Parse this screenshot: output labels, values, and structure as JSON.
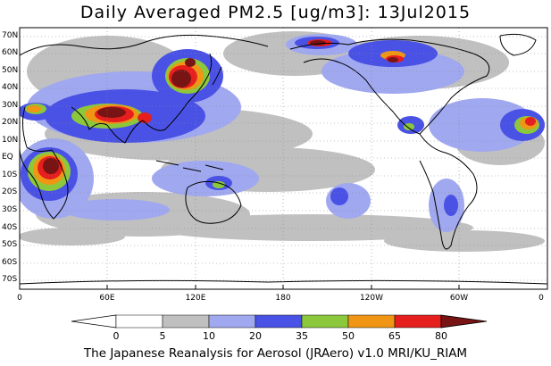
{
  "title": "Daily Averaged PM2.5 [ug/m3]: 13Jul2015",
  "credit": "The Japanese Reanalysis for Aerosol (JRAero) v1.0 MRI/KU_RIAM",
  "lat_labels": [
    "70N",
    "60N",
    "50N",
    "40N",
    "30N",
    "20N",
    "10N",
    "EQ",
    "10S",
    "20S",
    "30S",
    "40S",
    "50S",
    "60S",
    "70S"
  ],
  "lon_labels": [
    "0",
    "60E",
    "120E",
    "180",
    "120W",
    "60W",
    "0"
  ],
  "colorbar": {
    "levels": [
      "0",
      "5",
      "10",
      "20",
      "35",
      "50",
      "65",
      "80"
    ],
    "colors": [
      "#ffffff",
      "#c0c0c0",
      "#a0a8f0",
      "#4a52e6",
      "#8cc83c",
      "#f09614",
      "#e61e1e",
      "#781414"
    ]
  }
}
